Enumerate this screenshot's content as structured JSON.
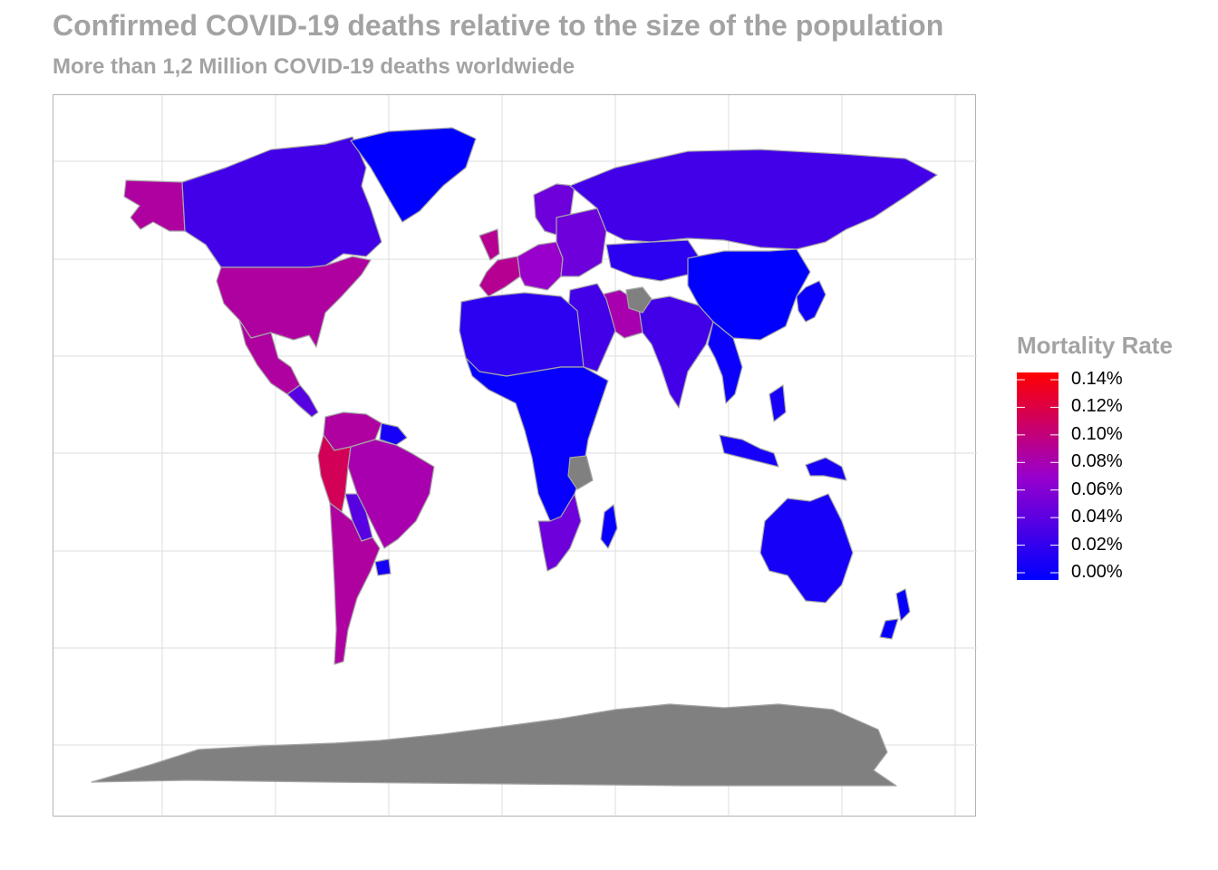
{
  "title": "Confirmed COVID-19 deaths relative to the size of the population",
  "subtitle": "More than 1,2 Million COVID-19 deaths worldwiede",
  "legend": {
    "title": "Mortality Rate",
    "labels": [
      "0.14%",
      "0.12%",
      "0.10%",
      "0.08%",
      "0.06%",
      "0.04%",
      "0.02%",
      "0.00%"
    ],
    "range": [
      0,
      0.14
    ],
    "low_color": "#0000ff",
    "mid_color": "#9900cc",
    "high_color": "#ff0000"
  },
  "colors": {
    "no_data": "#808080",
    "border": "#a6a6a6",
    "grid": "#dedede"
  },
  "map_data": {
    "type": "choropleth",
    "metric": "deaths per population (%)",
    "regions": [
      {
        "name": "Alaska",
        "value": 0.085
      },
      {
        "name": "Canada",
        "value": 0.03
      },
      {
        "name": "Greenland",
        "value": 0.0
      },
      {
        "name": "United States",
        "value": 0.085
      },
      {
        "name": "Mexico",
        "value": 0.085
      },
      {
        "name": "Central America",
        "value": 0.04
      },
      {
        "name": "Colombia & Venezuela",
        "value": 0.085
      },
      {
        "name": "Guianas",
        "value": 0.01
      },
      {
        "name": "Peru",
        "value": 0.11
      },
      {
        "name": "Brazil",
        "value": 0.08
      },
      {
        "name": "Bolivia & Paraguay",
        "value": 0.04
      },
      {
        "name": "Argentina & Chile",
        "value": 0.085
      },
      {
        "name": "Uruguay",
        "value": 0.01
      },
      {
        "name": "Spain & France & UK",
        "value": 0.09
      },
      {
        "name": "Western Europe",
        "value": 0.07
      },
      {
        "name": "Scandinavia",
        "value": 0.05
      },
      {
        "name": "Eastern Europe",
        "value": 0.05
      },
      {
        "name": "Russia",
        "value": 0.03
      },
      {
        "name": "Central Asia",
        "value": 0.02
      },
      {
        "name": "China & Mongolia",
        "value": 0.0
      },
      {
        "name": "Iran",
        "value": 0.08
      },
      {
        "name": "Middle East",
        "value": 0.03
      },
      {
        "name": "India & South Asia",
        "value": 0.03
      },
      {
        "name": "Southeast Asia",
        "value": 0.005
      },
      {
        "name": "Japan & Korea",
        "value": 0.005
      },
      {
        "name": "North Africa",
        "value": 0.02
      },
      {
        "name": "Central Africa",
        "value": 0.003
      },
      {
        "name": "Southern Africa",
        "value": 0.05
      },
      {
        "name": "Madagascar",
        "value": 0.003
      },
      {
        "name": "Indonesia & Philippines",
        "value": 0.01
      },
      {
        "name": "Australia",
        "value": 0.01
      },
      {
        "name": "New Zealand",
        "value": 0.003
      },
      {
        "name": "Afghanistan & Tanzania (no data)",
        "value": null
      },
      {
        "name": "Antarctica (no data)",
        "value": null
      }
    ]
  }
}
